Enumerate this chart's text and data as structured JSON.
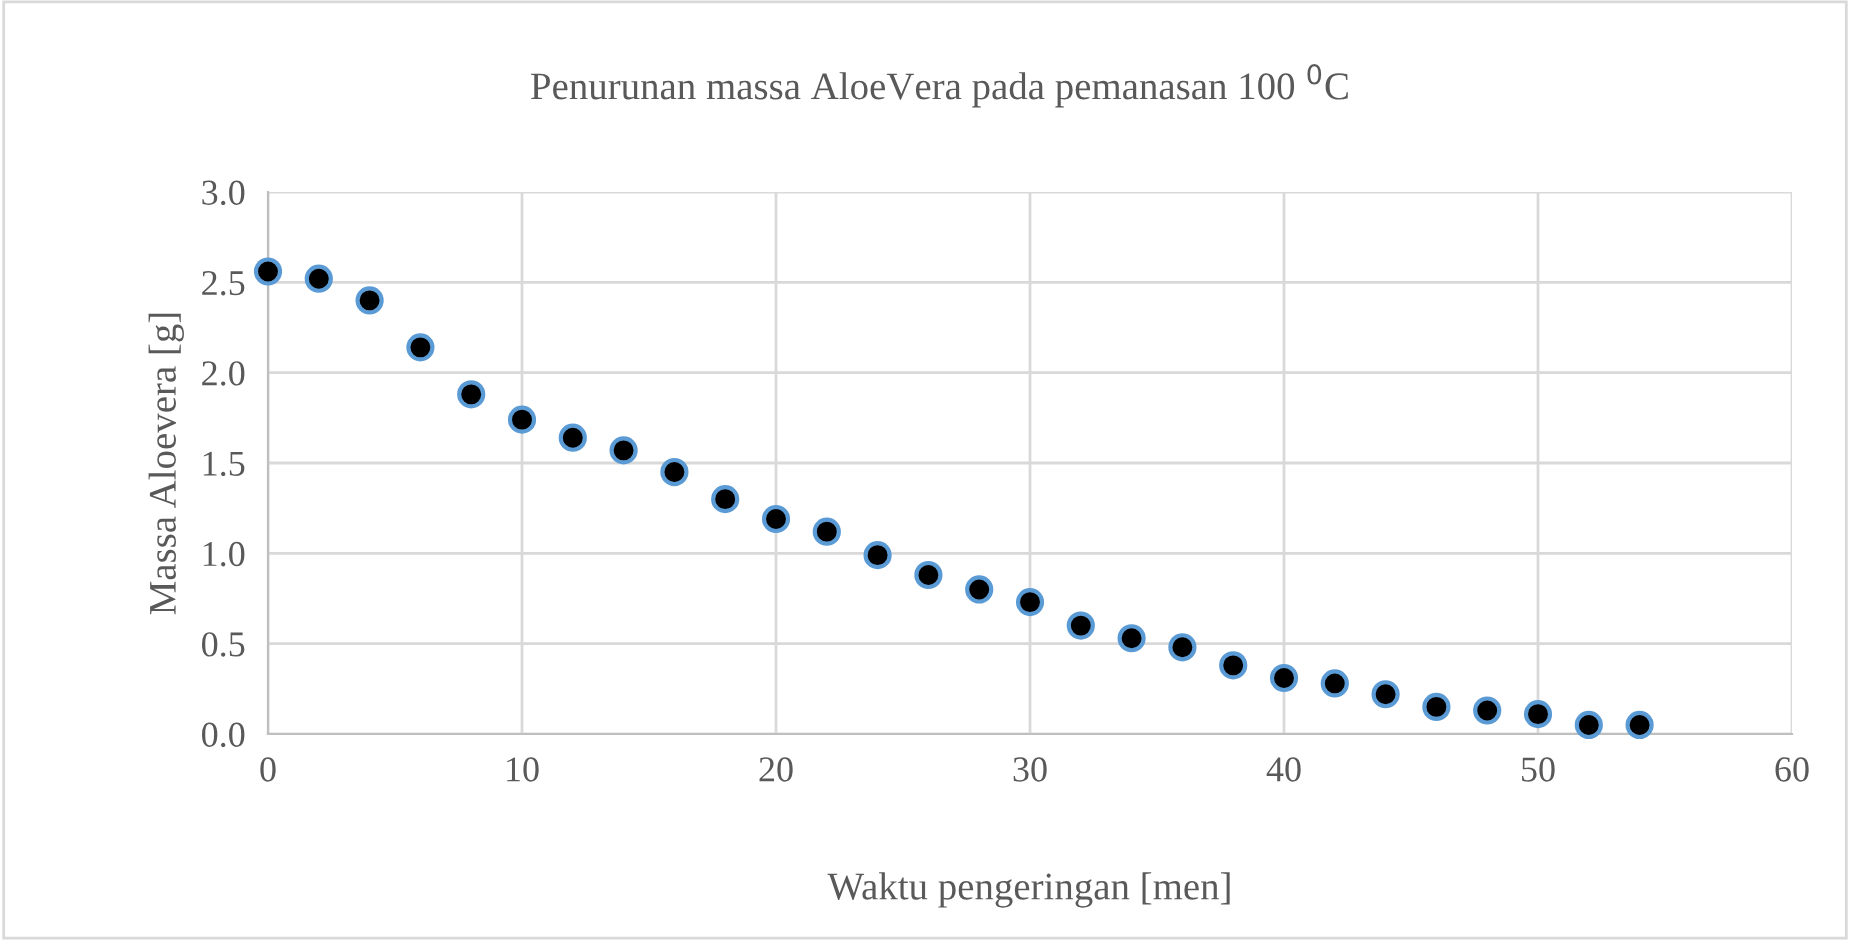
{
  "chart_data": {
    "type": "scatter",
    "title": "Penurunan massa AloeVera pada pemanasan 100 $^{0}$C",
    "xlabel": "Waktu pengeringan [men]",
    "ylabel": "Massa Aloevera [g]",
    "x": [
      0,
      2,
      4,
      6,
      8,
      10,
      12,
      14,
      16,
      18,
      20,
      22,
      24,
      26,
      28,
      30,
      32,
      34,
      36,
      38,
      40,
      42,
      44,
      46,
      48,
      50,
      52,
      54
    ],
    "series": [
      {
        "color": "#000000",
        "values": [
          2.56,
          2.52,
          2.4,
          2.14,
          1.88,
          1.74,
          1.64,
          1.57,
          1.45,
          1.3,
          1.19,
          1.12,
          0.99,
          0.88,
          0.8,
          0.73,
          0.6,
          0.53,
          0.48,
          0.38,
          0.31,
          0.28,
          0.22,
          0.15,
          0.13,
          0.11,
          0.05,
          0.05
        ]
      }
    ],
    "xlim": [
      0,
      60
    ],
    "xticks": [
      0,
      10,
      20,
      30,
      40,
      50,
      60
    ],
    "ylim": [
      0,
      3
    ],
    "yticks": [
      {
        "value": 0,
        "label": "0.0"
      },
      {
        "value": 0.5,
        "label": "0.5"
      },
      {
        "value": 1,
        "label": "1.0"
      },
      {
        "value": 1.5,
        "label": "1.5"
      },
      {
        "value": 2,
        "label": "2.0"
      },
      {
        "value": 2.5,
        "label": "2.5"
      },
      {
        "value": 3,
        "label": "3.0"
      }
    ],
    "grid": true,
    "marker": "circle",
    "legend": false
  }
}
